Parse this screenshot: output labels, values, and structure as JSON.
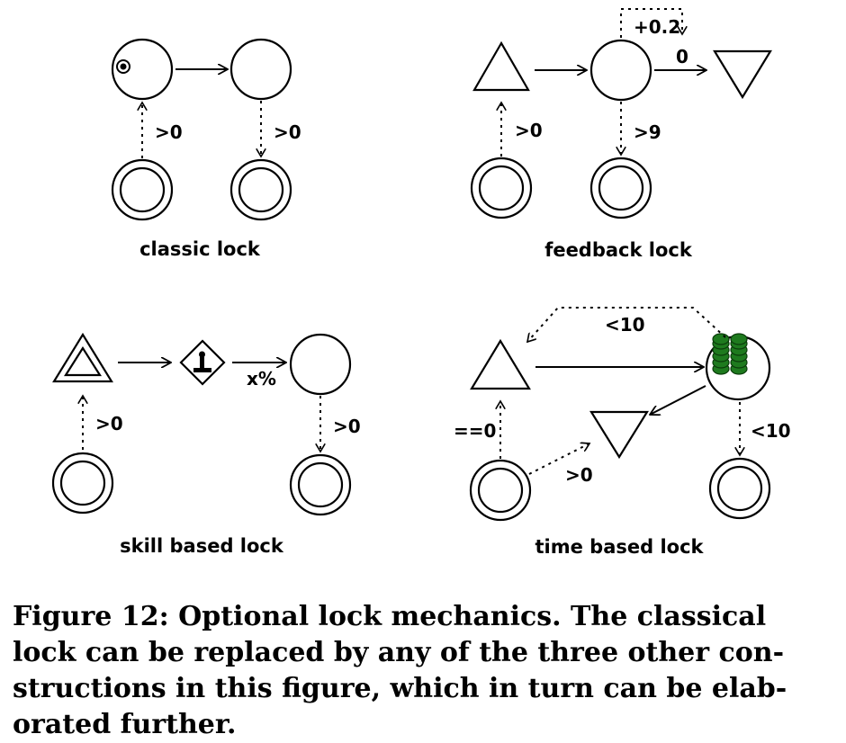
{
  "panels": {
    "classic": {
      "title": "classic lock",
      "labels": {
        "left_condition": ">0",
        "right_condition": ">0"
      }
    },
    "feedback": {
      "title": "feedback lock",
      "labels": {
        "feedback_amount": "+0.2",
        "output_condition": "0",
        "left_condition": ">0",
        "right_condition": ">9"
      }
    },
    "skill": {
      "title": "skill based lock",
      "labels": {
        "probability": "x%",
        "bottom_condition": ">0",
        "right_condition": ">0"
      }
    },
    "time": {
      "title": "time based lock",
      "labels": {
        "top_condition": "<10",
        "left_condition": "==0",
        "bottom_condition": ">0",
        "right_condition": "<10"
      }
    }
  },
  "colors": {
    "token": "#1e7a1e",
    "token_outline": "#0b3d0b"
  },
  "caption": {
    "lines": [
      "Figure 12: Optional lock mechanics. The classical",
      "lock can be replaced by any of the three other con-",
      "structions in this figure, which in turn can be elab-",
      "orated further."
    ]
  }
}
